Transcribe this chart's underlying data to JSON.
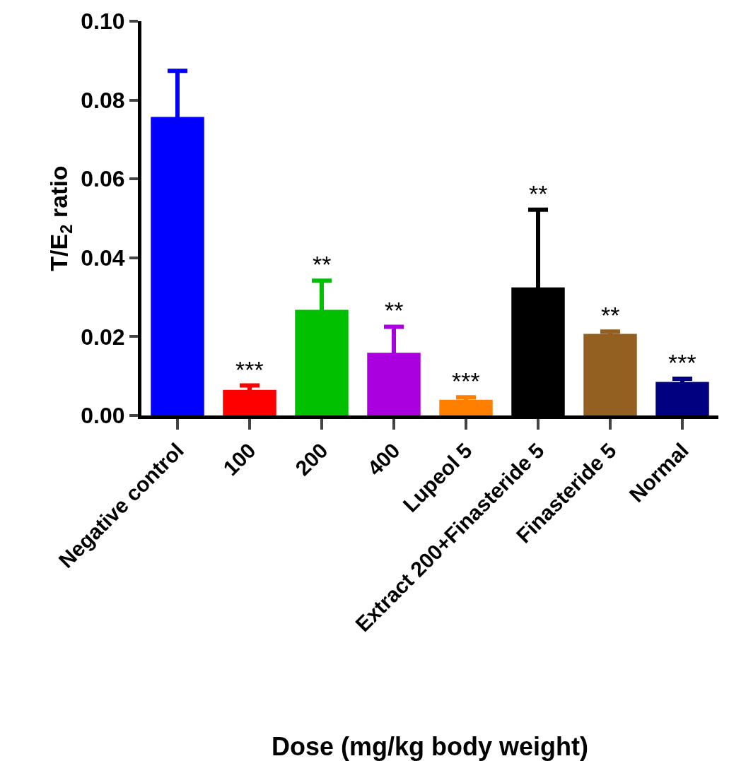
{
  "chart_data": {
    "type": "bar",
    "xlabel": "Dose (mg/kg body weight)",
    "ylabel": "T/E$_{2}$ ratio",
    "categories": [
      "Negative control",
      "100",
      "200",
      "400",
      "Lupeol 5",
      "Extract 200+Finasteride 5",
      "Finasteride 5",
      "Normal"
    ],
    "values": [
      0.0757,
      0.0065,
      0.0268,
      0.0159,
      0.004,
      0.0325,
      0.0207,
      0.0085
    ],
    "errors": [
      0.0117,
      0.0011,
      0.0074,
      0.0066,
      0.0006,
      0.0197,
      0.0006,
      0.0008
    ],
    "colors": [
      "#0000ff",
      "#ff0000",
      "#00c000",
      "#aa00e0",
      "#ff8000",
      "#000000",
      "#936021",
      "#000080"
    ],
    "ylim": [
      0,
      0.1
    ],
    "yticks": [
      {
        "value": 0,
        "label": "0.00"
      },
      {
        "value": 0.02,
        "label": "0.02"
      },
      {
        "value": 0.04,
        "label": "0.04"
      },
      {
        "value": 0.06,
        "label": "0.06"
      },
      {
        "value": 0.08,
        "label": "0.08"
      },
      {
        "value": 0.1,
        "label": "0.10"
      }
    ],
    "annotations": [
      {
        "text": "***",
        "x": "100",
        "y": 0.0076
      },
      {
        "text": "**",
        "x": "200",
        "y": 0.0342
      },
      {
        "text": "**",
        "x": "400",
        "y": 0.0225
      },
      {
        "text": "***",
        "x": "Lupeol 5",
        "y": 0.0046
      },
      {
        "text": "**",
        "x": "Extract 200+Finasteride 5",
        "y": 0.0522
      },
      {
        "text": "**",
        "x": "Finasteride 5",
        "y": 0.0213
      },
      {
        "text": "***",
        "x": "Normal",
        "y": 0.0093
      }
    ]
  }
}
